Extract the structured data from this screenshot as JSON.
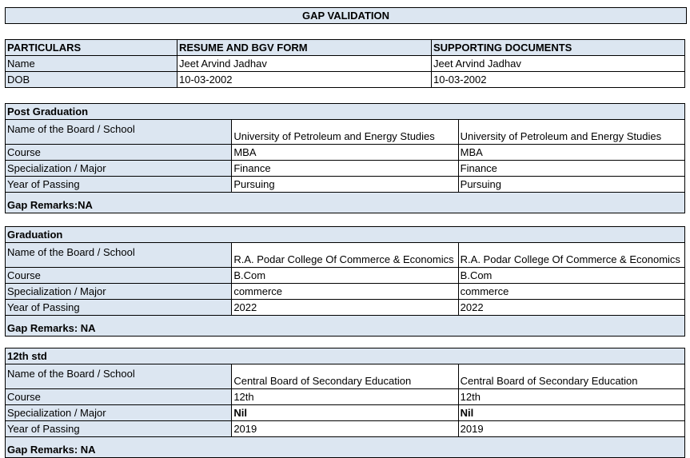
{
  "title": "GAP VALIDATION",
  "header": {
    "cols": [
      "PARTICULARS",
      "RESUME AND BGV FORM",
      "SUPPORTING DOCUMENTS"
    ],
    "rows": [
      [
        "Name",
        "Jeet Arvind Jadhav",
        "Jeet Arvind Jadhav"
      ],
      [
        "DOB",
        "10-03-2002",
        "10-03-2002"
      ]
    ]
  },
  "sections": [
    {
      "title": "Post Graduation",
      "rows": [
        [
          "Name of the Board / School",
          "University of Petroleum and Energy Studies",
          "University of Petroleum and Energy Studies"
        ],
        [
          "Course",
          "MBA",
          "MBA"
        ],
        [
          "Specialization / Major",
          "Finance",
          "Finance"
        ],
        [
          "Year of Passing",
          "Pursuing",
          "Pursuing"
        ]
      ],
      "remarks": "Gap Remarks:NA"
    },
    {
      "title": "Graduation",
      "rows": [
        [
          "Name of the Board / School",
          "R.A. Podar College Of Commerce & Economics",
          "R.A. Podar College Of Commerce & Economics"
        ],
        [
          "Course",
          "B.Com",
          "B.Com"
        ],
        [
          "Specialization / Major",
          "commerce",
          "commerce"
        ],
        [
          "Year of Passing",
          "2022",
          "2022"
        ]
      ],
      "remarks": "Gap Remarks: NA"
    },
    {
      "title": "12th std",
      "rows": [
        [
          "Name of the Board / School",
          "Central Board of Secondary Education",
          "Central Board of Secondary Education"
        ],
        [
          "Course",
          "12th",
          "12th"
        ],
        [
          "Specialization / Major",
          "Nil",
          "Nil"
        ],
        [
          "Year of Passing",
          "2019",
          "2019"
        ]
      ],
      "remarks": "Gap Remarks: NA"
    }
  ]
}
